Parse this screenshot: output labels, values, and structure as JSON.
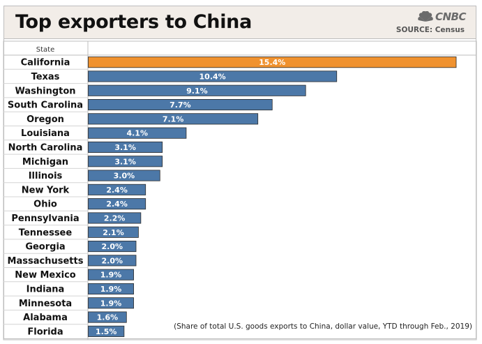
{
  "header": {
    "title": "Top exporters to China",
    "brand": "CNBC",
    "source": "SOURCE: Census"
  },
  "colors": {
    "highlight": "#f0922f",
    "bar": "#4c78a8",
    "bar_stroke": "#2b2b2b",
    "header_bg": "#f2ede8"
  },
  "footnote": "(Share of total U.S. goods exports to China, dollar value, YTD through Feb., 2019)",
  "chart_data": {
    "type": "bar",
    "orientation": "horizontal",
    "title": "Top exporters to China",
    "column_header": "State",
    "unit": "%",
    "xlim": [
      0,
      16
    ],
    "highlight": "California",
    "categories": [
      "California",
      "Texas",
      "Washington",
      "South Carolina",
      "Oregon",
      "Louisiana",
      "North Carolina",
      "Michigan",
      "Illinois",
      "New York",
      "Ohio",
      "Pennsylvania",
      "Tennessee",
      "Georgia",
      "Massachusetts",
      "New Mexico",
      "Indiana",
      "Minnesota",
      "Alabama",
      "Florida"
    ],
    "values": [
      15.4,
      10.4,
      9.1,
      7.7,
      7.1,
      4.1,
      3.1,
      3.1,
      3.0,
      2.4,
      2.4,
      2.2,
      2.1,
      2.0,
      2.0,
      1.9,
      1.9,
      1.9,
      1.6,
      1.5
    ],
    "labels": [
      "15.4%",
      "10.4%",
      "9.1%",
      "7.7%",
      "7.1%",
      "4.1%",
      "3.1%",
      "3.1%",
      "3.0%",
      "2.4%",
      "2.4%",
      "2.2%",
      "2.1%",
      "2.0%",
      "2.0%",
      "1.9%",
      "1.9%",
      "1.9%",
      "1.6%",
      "1.5%"
    ]
  }
}
